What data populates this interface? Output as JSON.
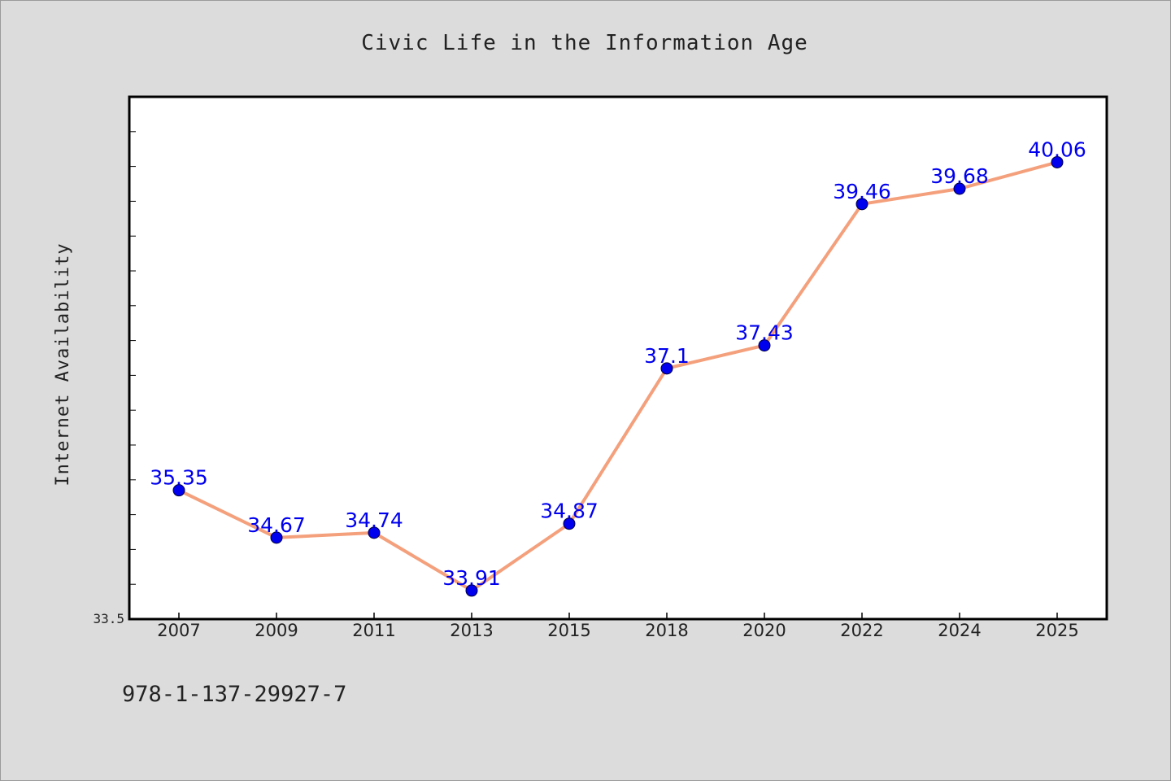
{
  "chart_data": {
    "type": "line",
    "title": "Civic Life in the Information Age",
    "ylabel": "Internet Availability",
    "xlabel": "",
    "categories": [
      "2007",
      "2009",
      "2011",
      "2013",
      "2015",
      "2018",
      "2020",
      "2022",
      "2024",
      "2025"
    ],
    "series": [
      {
        "values": [
          35.35,
          34.67,
          34.74,
          33.91,
          34.87,
          37.1,
          37.43,
          39.46,
          39.68,
          40.06
        ],
        "labels": [
          "35.35",
          "34.67",
          "34.74",
          "33.91",
          "34.87",
          "37.1",
          "37.43",
          "39.46",
          "39.68",
          "40.06"
        ],
        "line_color": "#f4a07c",
        "marker_color": "#0000ee"
      }
    ],
    "ylim": [
      33.5,
      41.0
    ],
    "ymin_label": "33.5",
    "grid": false,
    "legend": "none"
  },
  "footer": {
    "isbn": "978-1-137-29927-7"
  },
  "colors": {
    "background": "#dcdcdc",
    "plot_area": "#ffffff",
    "axes": "#000000"
  }
}
